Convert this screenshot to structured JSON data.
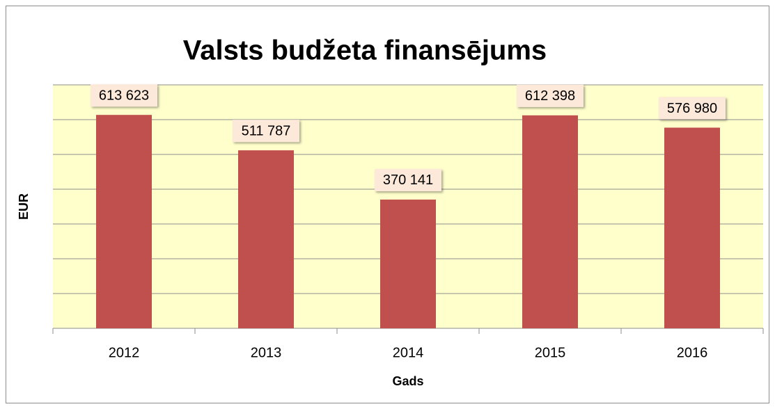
{
  "chart_data": {
    "type": "bar",
    "title": "Valsts budžeta finansējums",
    "x_label": "Gads",
    "y_label": "EUR",
    "categories": [
      "2012",
      "2013",
      "2014",
      "2015",
      "2016"
    ],
    "values": [
      613623,
      511787,
      370141,
      612398,
      576980
    ],
    "value_labels": [
      "613 623",
      "511 787",
      "370 141",
      "612 398",
      "576 980"
    ],
    "color": "#c0504d",
    "ylim": [
      0,
      700000
    ],
    "yticks": [
      0,
      100000,
      200000,
      300000,
      400000,
      500000,
      600000,
      700000
    ],
    "grid": true
  }
}
